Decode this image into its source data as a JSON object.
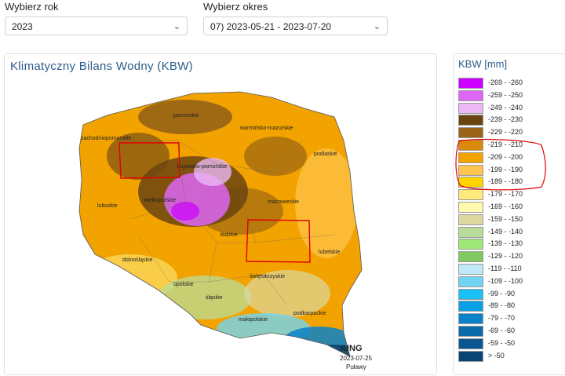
{
  "controls": {
    "year": {
      "label": "Wybierz rok",
      "value": "2023"
    },
    "period": {
      "label": "Wybierz okres",
      "value": "07) 2023-05-21 - 2023-07-20"
    }
  },
  "map": {
    "title": "Klimatyczny Bilans Wodny (KBW)",
    "regions": [
      "pomorskie",
      "warmińsko-mazurskie",
      "zachodniopomorskie",
      "kujawsko-pomorskie",
      "podlaskie",
      "wielkopolskie",
      "lubuskie",
      "mazowieckie",
      "łódzkie",
      "lubelskie",
      "dolnośląskie",
      "świętokrzyskie",
      "opolskie",
      "śląskie",
      "małopolskie",
      "podkarpackie"
    ],
    "logo_text": "IUNG",
    "date": "2023-07-25",
    "place": "Puławy"
  },
  "legend": {
    "title": "KBW [mm]",
    "items": [
      {
        "range": "-269 - -260",
        "color": "#cc00ff"
      },
      {
        "range": "-259 - -250",
        "color": "#dd66f5"
      },
      {
        "range": "-249 - -240",
        "color": "#ebb8f5"
      },
      {
        "range": "-239 - -230",
        "color": "#6b4510"
      },
      {
        "range": "-229 - -220",
        "color": "#9a6518"
      },
      {
        "range": "-219 - -210",
        "color": "#d98a0a"
      },
      {
        "range": "-209 - -200",
        "color": "#f2a300"
      },
      {
        "range": "-199 - -190",
        "color": "#ffc44d"
      },
      {
        "range": "-189 - -180",
        "color": "#ffd400"
      },
      {
        "range": "-179 - -170",
        "color": "#ffe97a"
      },
      {
        "range": "-169 - -160",
        "color": "#fffab0"
      },
      {
        "range": "-159 - -150",
        "color": "#dcd8a0"
      },
      {
        "range": "-149 - -140",
        "color": "#b9dc98"
      },
      {
        "range": "-139 - -130",
        "color": "#9ee87a"
      },
      {
        "range": "-129 - -120",
        "color": "#80c860"
      },
      {
        "range": "-119 - -110",
        "color": "#bfe8f8"
      },
      {
        "range": "-109 - -100",
        "color": "#70d4f2"
      },
      {
        "range": "-99 - -90",
        "color": "#19c0f5"
      },
      {
        "range": "-89 - -80",
        "color": "#0aa0e6"
      },
      {
        "range": "-79 - -70",
        "color": "#0a82c8"
      },
      {
        "range": "-69 - -60",
        "color": "#0a6aaa"
      },
      {
        "range": "-59 - -50",
        "color": "#0a5690"
      },
      {
        "range": "> -50",
        "color": "#0a4575"
      }
    ]
  }
}
